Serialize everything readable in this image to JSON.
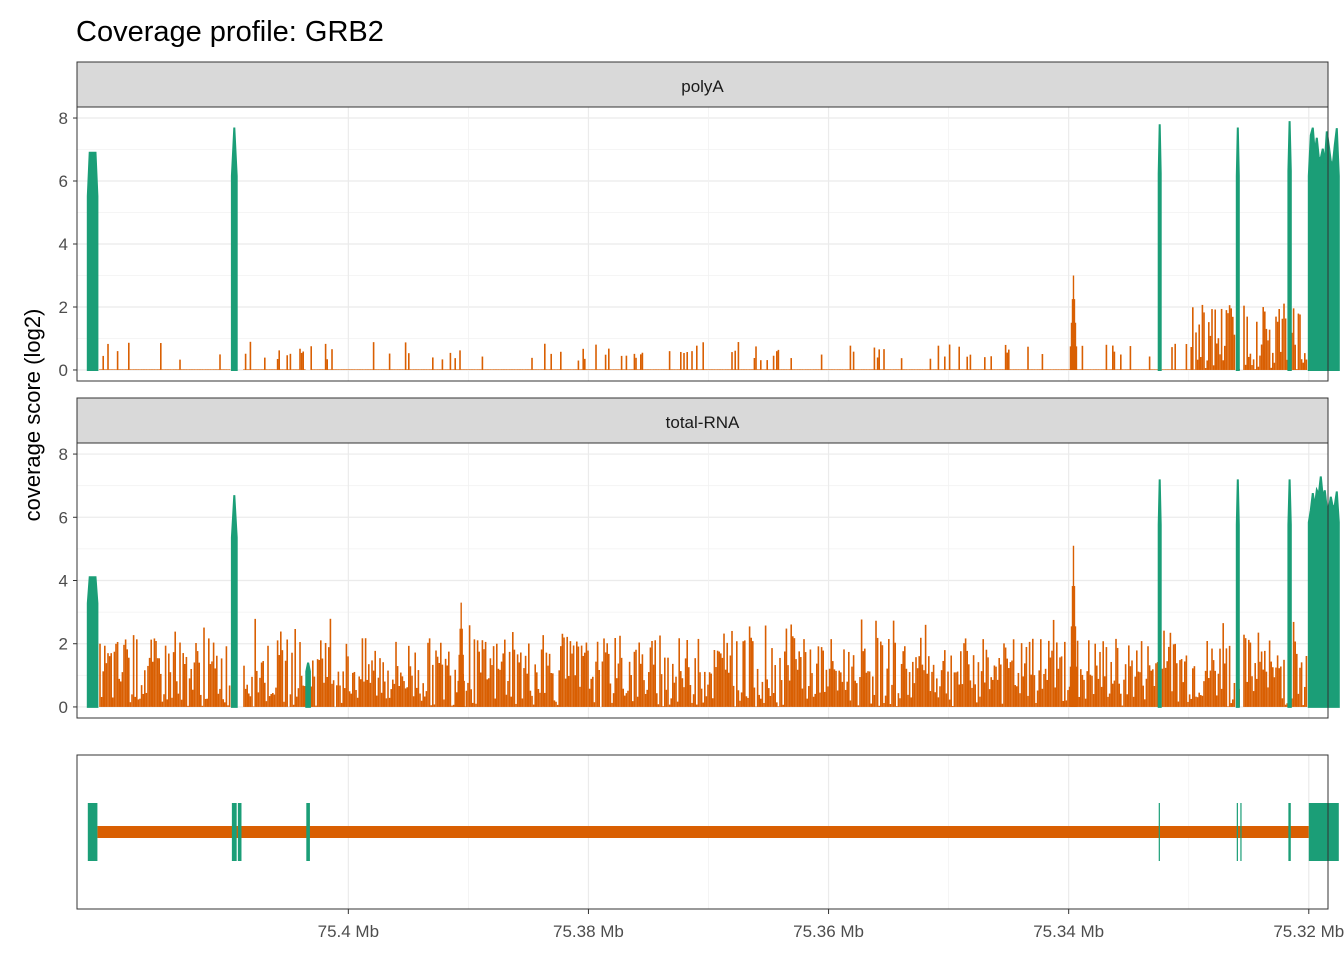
{
  "chart_data": {
    "type": "area",
    "title": "Coverage profile: GRB2",
    "ylabel": "coverage score (log2)",
    "xlabel": "",
    "x_reversed": true,
    "xlim_mb": [
      75.4226,
      75.3184
    ],
    "ylim": [
      -0.35,
      8.35
    ],
    "y_ticks": [
      0,
      2,
      4,
      6,
      8
    ],
    "x_ticks": [
      {
        "value": 75.4,
        "label": "75.4 Mb"
      },
      {
        "value": 75.38,
        "label": "75.38 Mb"
      },
      {
        "value": 75.36,
        "label": "75.36 Mb"
      },
      {
        "value": 75.34,
        "label": "75.34 Mb"
      },
      {
        "value": 75.32,
        "label": "75.32 Mb"
      }
    ],
    "colors": {
      "exon": "#1b9e77",
      "intron": "#d95f02"
    },
    "exons_mb": [
      [
        75.4217,
        75.4209
      ],
      [
        75.4097,
        75.4093
      ],
      [
        75.4092,
        75.4089
      ],
      [
        75.4035,
        75.4032
      ],
      [
        75.3325,
        75.3324
      ],
      [
        75.326,
        75.3259
      ],
      [
        75.3257,
        75.3256
      ],
      [
        75.3217,
        75.3215
      ],
      [
        75.32,
        75.3175
      ]
    ],
    "panels": [
      {
        "name": "polyA",
        "exon_peaks": [
          6.9,
          7.7,
          0,
          7.8,
          7.7,
          7.9,
          7.7
        ],
        "intron_level": 0.35,
        "intron_peaks": [
          {
            "x": 75.3396,
            "y": 3.0
          }
        ],
        "intron_tail_max": 2.6
      },
      {
        "name": "total-RNA",
        "exon_peaks": [
          4.1,
          6.7,
          1.4,
          7.2,
          7.2,
          7.2,
          7.3
        ],
        "intron_level": 2.0,
        "intron_peaks": [
          {
            "x": 75.3396,
            "y": 5.1
          },
          {
            "x": 75.3906,
            "y": 3.3
          }
        ],
        "intron_tail_max": 2.5
      }
    ],
    "track": "gene model"
  }
}
